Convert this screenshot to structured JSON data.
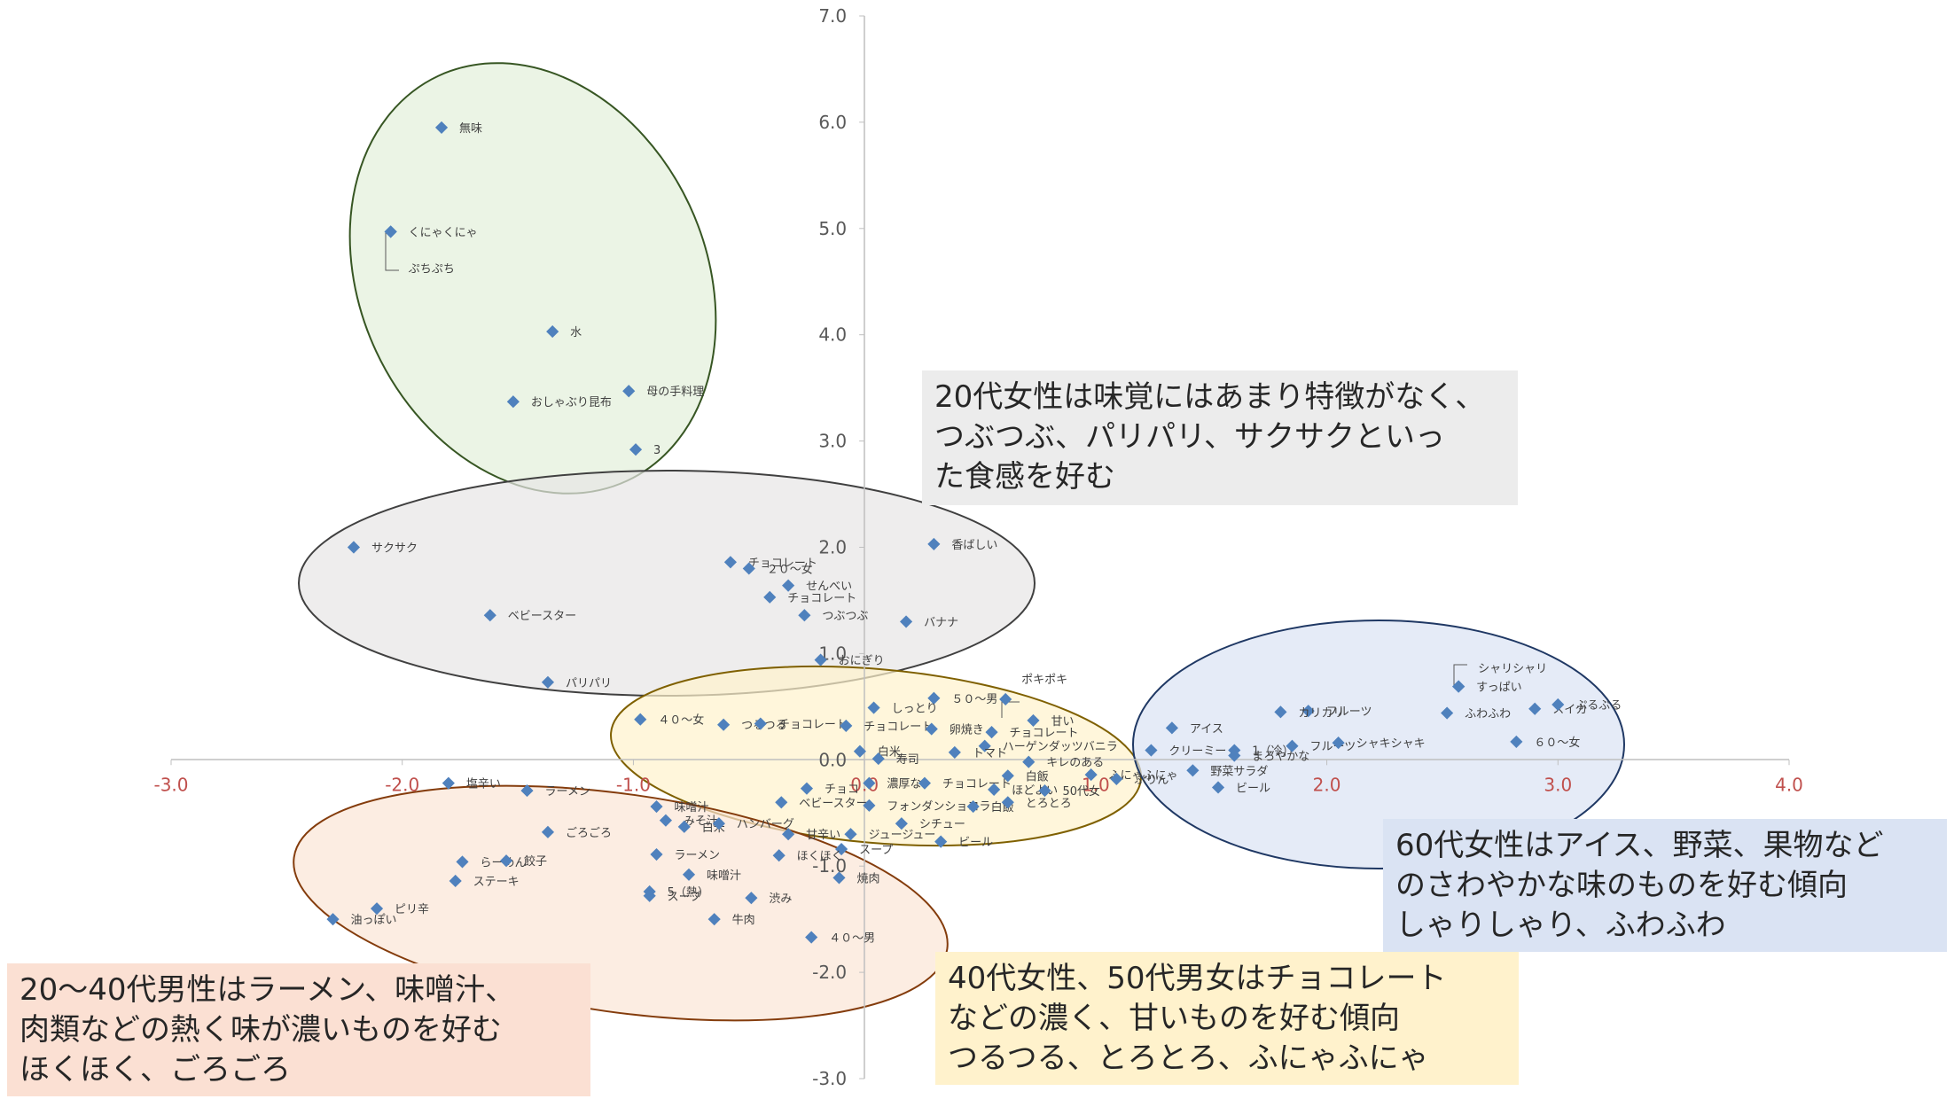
{
  "chart_data": {
    "type": "scatter",
    "xlim": [
      -3.0,
      4.0
    ],
    "ylim": [
      -3.0,
      7.0
    ],
    "x_ticks": [
      "-3.0",
      "-2.0",
      "-1.0",
      "0.0",
      "1.0",
      "2.0",
      "3.0",
      "4.0"
    ],
    "y_ticks": [
      "-3.0",
      "-2.0",
      "-1.0",
      "0.0",
      "1.0",
      "2.0",
      "3.0",
      "4.0",
      "5.0",
      "6.0",
      "7.0"
    ],
    "grid": false,
    "marker_color": "#4f81bd",
    "points": [
      {
        "label": "無味",
        "x": -1.83,
        "y": 5.95
      },
      {
        "label": "くにゃくにゃ",
        "x": -2.05,
        "y": 4.97
      },
      {
        "label": "ぷちぷち",
        "x": -2.05,
        "y": 4.97
      },
      {
        "label": "水",
        "x": -1.35,
        "y": 4.03
      },
      {
        "label": "母の手料理",
        "x": -1.02,
        "y": 3.47
      },
      {
        "label": "おしゃぶり昆布",
        "x": -1.52,
        "y": 3.37
      },
      {
        "label": "3",
        "x": -0.99,
        "y": 2.92
      },
      {
        "label": "サクサク",
        "x": -2.21,
        "y": 2.0
      },
      {
        "label": "香ばしい",
        "x": 0.3,
        "y": 2.03
      },
      {
        "label": "チョコレート",
        "x": -0.58,
        "y": 1.86
      },
      {
        "label": "２０～女",
        "x": -0.5,
        "y": 1.8
      },
      {
        "label": "せんべい",
        "x": -0.33,
        "y": 1.64
      },
      {
        "label": "チョコレート",
        "x": -0.41,
        "y": 1.53
      },
      {
        "label": "ベビースター",
        "x": -1.62,
        "y": 1.36
      },
      {
        "label": "つぶつぶ",
        "x": -0.26,
        "y": 1.36
      },
      {
        "label": "バナナ",
        "x": 0.18,
        "y": 1.3
      },
      {
        "label": "おにぎり",
        "x": -0.19,
        "y": 0.94
      },
      {
        "label": "パリパリ",
        "x": -1.37,
        "y": 0.73
      },
      {
        "label": "５０～男",
        "x": 0.3,
        "y": 0.58
      },
      {
        "label": "ポキポキ",
        "x": 0.61,
        "y": 0.57
      },
      {
        "label": "しっとり",
        "x": 0.04,
        "y": 0.49
      },
      {
        "label": "甘い",
        "x": 0.73,
        "y": 0.37
      },
      {
        "label": "４０～女",
        "x": -0.97,
        "y": 0.38
      },
      {
        "label": "つるつる",
        "x": -0.61,
        "y": 0.33
      },
      {
        "label": "チョコレート",
        "x": -0.45,
        "y": 0.34
      },
      {
        "label": "チョコレート",
        "x": -0.08,
        "y": 0.32
      },
      {
        "label": "卵焼き",
        "x": 0.29,
        "y": 0.29
      },
      {
        "label": "チョコレート",
        "x": 0.55,
        "y": 0.26
      },
      {
        "label": "ハーゲンダッツバニラ",
        "x": 0.52,
        "y": 0.13
      },
      {
        "label": "白米",
        "x": -0.02,
        "y": 0.08
      },
      {
        "label": "トマト",
        "x": 0.39,
        "y": 0.07
      },
      {
        "label": "寿司",
        "x": 0.06,
        "y": 0.01
      },
      {
        "label": "キレのある",
        "x": 0.71,
        "y": -0.02
      },
      {
        "label": "白飯",
        "x": 0.62,
        "y": -0.15
      },
      {
        "label": "濃厚な",
        "x": 0.02,
        "y": -0.22
      },
      {
        "label": "チョコ",
        "x": -0.25,
        "y": -0.27
      },
      {
        "label": "チョコレート",
        "x": 0.26,
        "y": -0.22
      },
      {
        "label": "ほどよい",
        "x": 0.56,
        "y": -0.28
      },
      {
        "label": "50代女",
        "x": 0.78,
        "y": -0.29
      },
      {
        "label": "ふにゃふにゃ",
        "x": 0.98,
        "y": -0.14
      },
      {
        "label": "ぷりん",
        "x": 1.09,
        "y": -0.18
      },
      {
        "label": "ベビースター",
        "x": -0.36,
        "y": -0.4
      },
      {
        "label": "フォンダンショコラ",
        "x": 0.02,
        "y": -0.43
      },
      {
        "label": "白飯",
        "x": 0.47,
        "y": -0.44
      },
      {
        "label": "とろとろ",
        "x": 0.62,
        "y": -0.4
      },
      {
        "label": "シチュー",
        "x": 0.16,
        "y": -0.6
      },
      {
        "label": "ジュージュー",
        "x": -0.06,
        "y": -0.7
      },
      {
        "label": "ビール",
        "x": 0.33,
        "y": -0.77
      },
      {
        "label": "スープ",
        "x": -0.1,
        "y": -0.84
      },
      {
        "label": "アイス",
        "x": 1.33,
        "y": 0.3
      },
      {
        "label": "クリーミー",
        "x": 1.24,
        "y": 0.09
      },
      {
        "label": "1（冷）",
        "x": 1.6,
        "y": 0.09
      },
      {
        "label": "まろやかな",
        "x": 1.6,
        "y": 0.04
      },
      {
        "label": "野菜サラダ",
        "x": 1.42,
        "y": -0.1
      },
      {
        "label": "ビール",
        "x": 1.53,
        "y": -0.26
      },
      {
        "label": "フルーツ",
        "x": 1.92,
        "y": 0.46
      },
      {
        "label": "カリカリ",
        "x": 1.8,
        "y": 0.45
      },
      {
        "label": "フルーツ",
        "x": 1.85,
        "y": 0.13
      },
      {
        "label": "シャキシャキ",
        "x": 2.05,
        "y": 0.16
      },
      {
        "label": "すっぱい",
        "x": 2.57,
        "y": 0.69
      },
      {
        "label": "シャリシャリ",
        "x": 2.57,
        "y": 0.69
      },
      {
        "label": "ふわふわ",
        "x": 2.52,
        "y": 0.44
      },
      {
        "label": "スイカ",
        "x": 2.9,
        "y": 0.48
      },
      {
        "label": "ぷるぷる",
        "x": 3.0,
        "y": 0.52
      },
      {
        "label": "６０～女",
        "x": 2.82,
        "y": 0.17
      },
      {
        "label": "塩辛い",
        "x": -1.8,
        "y": -0.22
      },
      {
        "label": "ラーメン",
        "x": -1.46,
        "y": -0.29
      },
      {
        "label": "味噌汁",
        "x": -0.9,
        "y": -0.44
      },
      {
        "label": "ごろごろ",
        "x": -1.37,
        "y": -0.68
      },
      {
        "label": "みそ汁",
        "x": -0.86,
        "y": -0.57
      },
      {
        "label": "白米",
        "x": -0.78,
        "y": -0.63
      },
      {
        "label": "ハンバーグ",
        "x": -0.63,
        "y": -0.6
      },
      {
        "label": "甘辛い",
        "x": -0.33,
        "y": -0.7
      },
      {
        "label": "ラーメン",
        "x": -0.9,
        "y": -0.89
      },
      {
        "label": "らーめん",
        "x": -1.74,
        "y": -0.96
      },
      {
        "label": "餃子",
        "x": -1.55,
        "y": -0.95
      },
      {
        "label": "ほくほく",
        "x": -0.37,
        "y": -0.9
      },
      {
        "label": "ステーキ",
        "x": -1.77,
        "y": -1.14
      },
      {
        "label": "味噌汁",
        "x": -0.76,
        "y": -1.08
      },
      {
        "label": "5（熱）",
        "x": -0.93,
        "y": -1.24
      },
      {
        "label": "スープ",
        "x": -0.93,
        "y": -1.28
      },
      {
        "label": "渋み",
        "x": -0.49,
        "y": -1.3
      },
      {
        "label": "焼肉",
        "x": -0.11,
        "y": -1.11
      },
      {
        "label": "ピリ辛",
        "x": -2.11,
        "y": -1.4
      },
      {
        "label": "油っぽい",
        "x": -2.3,
        "y": -1.5
      },
      {
        "label": "牛肉",
        "x": -0.65,
        "y": -1.5
      },
      {
        "label": "４０～男",
        "x": -0.23,
        "y": -1.67
      }
    ]
  },
  "notes": {
    "women20": {
      "lines": [
        "20代女性は味覚にはあまり特徴がなく、",
        "つぶつぶ、パリパリ、サクサクといっ",
        "た食感を好む"
      ],
      "bg": "#ececec"
    },
    "women60": {
      "lines": [
        "60代女性はアイス、野菜、果物など",
        "のさわやかな味のものを好む傾向",
        "しゃりしゃり、ふわふわ"
      ],
      "bg": "#dae3f3"
    },
    "men2040": {
      "lines": [
        "20～40代男性はラーメン、味噌汁、",
        "肉類などの熱く味が濃いものを好む",
        "ほくほく、ごろごろ"
      ],
      "bg": "#fbe0d3"
    },
    "mixed4050": {
      "lines": [
        "40代女性、50代男女はチョコレート",
        "などの濃く、甘いものを好む傾向",
        "つるつる、とろとろ、ふにゃふにゃ"
      ],
      "bg": "#fff2cc"
    }
  },
  "clusters": {
    "green": {
      "fill": "#e2efda",
      "stroke": "#375623"
    },
    "gray": {
      "fill": "#e7e6e6",
      "stroke": "#404040"
    },
    "yellow": {
      "fill": "#fff2cc",
      "stroke": "#7f6000"
    },
    "blue": {
      "fill": "#dae3f3",
      "stroke": "#1f3864"
    },
    "orange": {
      "fill": "#fbe5d6",
      "stroke": "#843c0c"
    }
  }
}
